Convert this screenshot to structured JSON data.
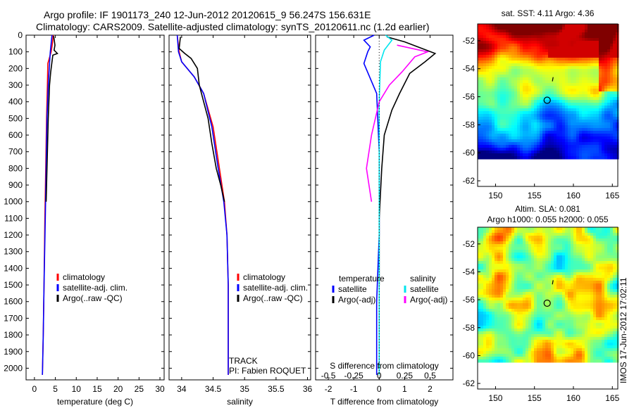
{
  "header": {
    "line1": "Argo profile: IF 1901173_240 12-Jun-2012 20120615_9 56.247S 156.631E",
    "line2": "Climatology: CARS2009. Satellite-adjusted climatology: synTS_20120611.nc (1.2d earlier)"
  },
  "stamp": "IMOS 17-Jun-2012 17:02:11",
  "colors": {
    "clim": "#ff0000",
    "sat": "#0000ff",
    "argo": "#000000",
    "sat_s": "#00e5ee",
    "argo_s": "#ff00ff"
  },
  "chart_data": [
    {
      "type": "line",
      "name": "temperature",
      "xlabel": "temperature (deg C)",
      "ylabel": "",
      "xlim": [
        -2,
        31
      ],
      "ylim": [
        0,
        2070
      ],
      "xticks": [
        "0",
        "5",
        "10",
        "15",
        "20",
        "25",
        "30"
      ],
      "xtick_values": [
        0,
        5,
        10,
        15,
        20,
        25,
        30
      ],
      "yticks": [
        "0",
        "100",
        "200",
        "300",
        "400",
        "500",
        "600",
        "700",
        "800",
        "900",
        "1000",
        "1100",
        "1200",
        "1300",
        "1400",
        "1500",
        "1600",
        "1700",
        "1800",
        "1900",
        "2000"
      ],
      "legend": [
        "climatology",
        "satellite-adj. clim.",
        "Argo(..raw -QC)"
      ],
      "series": [
        {
          "name": "climatology",
          "color": "clim",
          "points": [
            [
              4.5,
              0
            ],
            [
              4.3,
              50
            ],
            [
              4.0,
              100
            ],
            [
              3.2,
              170
            ],
            [
              3.1,
              300
            ],
            [
              2.9,
              500
            ],
            [
              2.7,
              800
            ],
            [
              2.5,
              1100
            ],
            [
              2.3,
              1500
            ],
            [
              2.1,
              1800
            ],
            [
              1.9,
              2040
            ]
          ]
        },
        {
          "name": "satellite-adj. clim.",
          "color": "sat",
          "points": [
            [
              4.2,
              0
            ],
            [
              4.0,
              50
            ],
            [
              3.8,
              100
            ],
            [
              3.6,
              170
            ],
            [
              3.3,
              300
            ],
            [
              3.0,
              500
            ],
            [
              2.8,
              800
            ],
            [
              2.6,
              1100
            ],
            [
              2.3,
              1500
            ],
            [
              2.1,
              1800
            ],
            [
              1.9,
              2040
            ]
          ]
        },
        {
          "name": "Argo(..raw -QC)",
          "color": "argo",
          "points": [
            [
              4.6,
              5
            ],
            [
              4.9,
              60
            ],
            [
              4.7,
              90
            ],
            [
              5.5,
              110
            ],
            [
              4.4,
              120
            ],
            [
              4.2,
              160
            ],
            [
              3.9,
              220
            ],
            [
              3.6,
              300
            ],
            [
              3.3,
              500
            ],
            [
              3.0,
              800
            ],
            [
              2.8,
              1000
            ]
          ]
        }
      ]
    },
    {
      "type": "line",
      "name": "salinity",
      "xlabel": "salinity",
      "ylabel": "",
      "xlim": [
        33.8,
        36.05
      ],
      "ylim": [
        0,
        2070
      ],
      "xticks": [
        "34",
        "34.5",
        "35",
        "35.5",
        "36"
      ],
      "xtick_values": [
        34,
        34.5,
        35,
        35.5,
        36
      ],
      "legend": [
        "climatology",
        "satellite-adj. clim.",
        "Argo(..raw -QC)"
      ],
      "annotations": [
        "TRACK",
        "PI: Fabien ROQUET"
      ],
      "series": [
        {
          "name": "climatology",
          "color": "clim",
          "points": [
            [
              33.93,
              0
            ],
            [
              33.96,
              100
            ],
            [
              34.0,
              160
            ],
            [
              34.2,
              250
            ],
            [
              34.35,
              350
            ],
            [
              34.5,
              550
            ],
            [
              34.6,
              800
            ],
            [
              34.68,
              1000
            ],
            [
              34.72,
              1200
            ],
            [
              34.74,
              1500
            ],
            [
              34.74,
              2040
            ]
          ]
        },
        {
          "name": "satellite-adj. clim.",
          "color": "sat",
          "points": [
            [
              33.93,
              0
            ],
            [
              33.95,
              100
            ],
            [
              34.0,
              160
            ],
            [
              34.2,
              250
            ],
            [
              34.35,
              350
            ],
            [
              34.48,
              550
            ],
            [
              34.58,
              800
            ],
            [
              34.67,
              1000
            ],
            [
              34.72,
              1200
            ],
            [
              34.74,
              1500
            ],
            [
              34.74,
              2040
            ]
          ]
        },
        {
          "name": "Argo(..raw -QC)",
          "color": "argo",
          "points": [
            [
              33.98,
              10
            ],
            [
              33.96,
              80
            ],
            [
              34.05,
              110
            ],
            [
              34.15,
              140
            ],
            [
              34.25,
              200
            ],
            [
              34.28,
              300
            ],
            [
              34.35,
              400
            ],
            [
              34.42,
              500
            ],
            [
              34.48,
              650
            ],
            [
              34.55,
              800
            ],
            [
              34.62,
              900
            ],
            [
              34.68,
              1000
            ]
          ]
        }
      ]
    },
    {
      "type": "line",
      "name": "difference",
      "xlabel": "T difference from climatology",
      "xlabel_top": "S difference from climatology",
      "xlim": [
        -2.5,
        2.9
      ],
      "ylim": [
        0,
        2070
      ],
      "xticks": [
        "-2",
        "-1",
        "0",
        "1",
        "2"
      ],
      "xtick_values": [
        -2,
        -1,
        0,
        1,
        2
      ],
      "xticks_top": [
        "-0.5",
        "-0.25",
        "0",
        "0.25",
        "0.5"
      ],
      "xticks_top_values": [
        -0.5,
        -0.25,
        0,
        0.25,
        0.5
      ],
      "legend_left_title": "temperature",
      "legend_right_title": "salinity",
      "legend": [
        "satellite",
        "Argo(-adj)",
        "satellite",
        "Argo(-adj)"
      ],
      "series": [
        {
          "name": "temperature satellite",
          "color": "sat",
          "points": [
            [
              -0.2,
              0
            ],
            [
              -0.6,
              30
            ],
            [
              -0.35,
              70
            ],
            [
              -0.45,
              100
            ],
            [
              -0.6,
              170
            ],
            [
              -0.1,
              350
            ],
            [
              0.0,
              700
            ],
            [
              0.0,
              1200
            ],
            [
              -0.1,
              1600
            ],
            [
              -0.1,
              2040
            ]
          ]
        },
        {
          "name": "temperature Argo(-adj)",
          "color": "argo",
          "points": [
            [
              0.3,
              10
            ],
            [
              1.0,
              40
            ],
            [
              2.2,
              110
            ],
            [
              1.8,
              160
            ],
            [
              1.2,
              230
            ],
            [
              0.8,
              350
            ],
            [
              0.5,
              450
            ],
            [
              0.2,
              600
            ],
            [
              0.1,
              800
            ],
            [
              0.0,
              1100
            ],
            [
              0.0,
              1500
            ]
          ]
        },
        {
          "name": "salinity satellite",
          "color": "sat_s",
          "points": [
            [
              0.25,
              0
            ],
            [
              0.5,
              30
            ],
            [
              0.2,
              90
            ],
            [
              0.05,
              160
            ],
            [
              0.0,
              400
            ],
            [
              0.0,
              2040
            ]
          ]
        },
        {
          "name": "salinity Argo(-adj)",
          "color": "argo_s",
          "points": [
            [
              0.7,
              60
            ],
            [
              1.9,
              100
            ],
            [
              1.4,
              130
            ],
            [
              0.9,
              220
            ],
            [
              0.4,
              300
            ],
            [
              0.0,
              400
            ],
            [
              -0.3,
              600
            ],
            [
              -0.5,
              800
            ],
            [
              -0.3,
              1000
            ]
          ]
        }
      ]
    }
  ],
  "maps": [
    {
      "title": "sat. SST: 4.11  Argo: 4.36",
      "xticks": [
        "150",
        "155",
        "160",
        "165"
      ],
      "yticks": [
        "-52",
        "-54",
        "-56",
        "-58",
        "-60",
        "-62"
      ],
      "profile_lon": 156.631,
      "profile_lat": -56.247
    },
    {
      "title_line1": "Altim. SLA: 0.081",
      "title_line2": "Argo h1000: 0.055  h2000: 0.055",
      "xticks": [
        "150",
        "155",
        "160",
        "165"
      ],
      "yticks": [
        "-52",
        "-54",
        "-56",
        "-58",
        "-60",
        "-62"
      ],
      "profile_lon": 156.631,
      "profile_lat": -56.247
    }
  ]
}
